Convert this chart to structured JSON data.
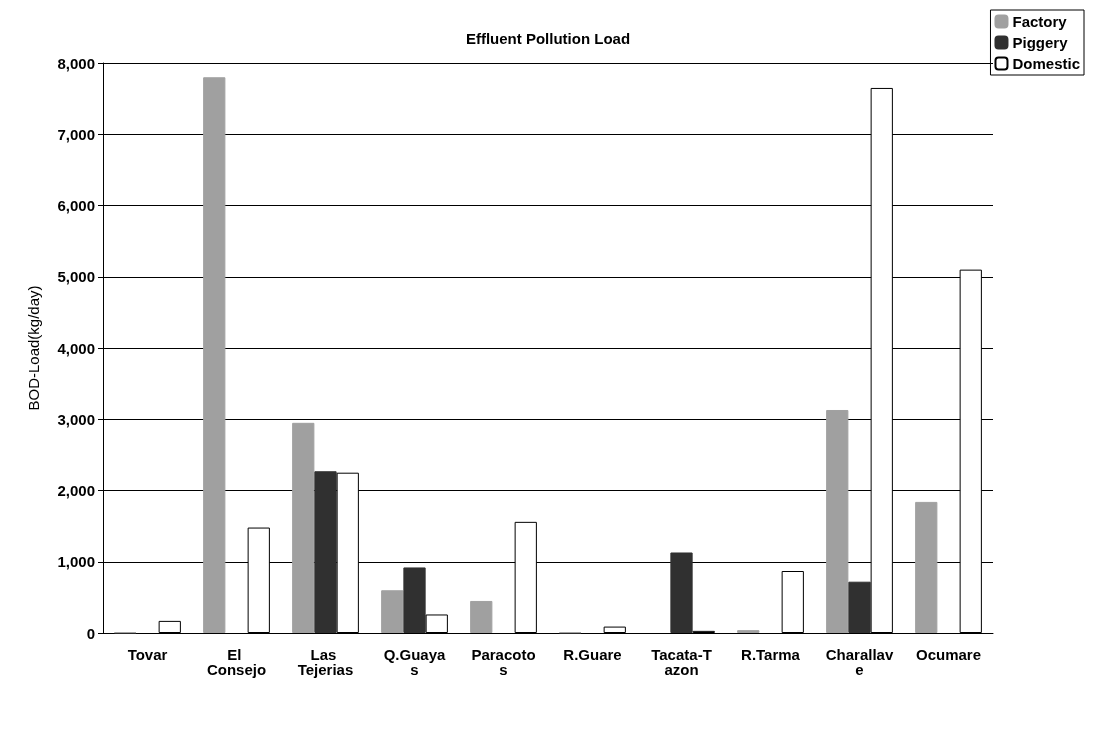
{
  "chart_data": {
    "type": "bar",
    "title": "Effluent Pollution Load",
    "ylabel": "BOD-Load(kg/day)",
    "categories": [
      "Tovar",
      "El Consejo",
      "Las Tejerias",
      "Q.Guayas",
      "Paracotos",
      "R.Guare",
      "Tacata-Tazon",
      "R.Tarma",
      "Charallave",
      "Ocumare"
    ],
    "series": [
      {
        "name": "Factory",
        "color": "#a0a0a0",
        "values": [
          10,
          7800,
          2950,
          600,
          450,
          10,
          0,
          40,
          3130,
          1840
        ]
      },
      {
        "name": "Piggery",
        "color": "#303030",
        "values": [
          0,
          0,
          2270,
          920,
          0,
          0,
          1130,
          0,
          720,
          0
        ]
      },
      {
        "name": "Domestic",
        "color": "#ffffff",
        "values": [
          170,
          1480,
          2250,
          260,
          1560,
          90,
          30,
          870,
          7650,
          5100
        ]
      }
    ],
    "ylim": [
      0,
      8000
    ],
    "yticks": [
      {
        "value": 0,
        "label": "0"
      },
      {
        "value": 1000,
        "label": "1,000"
      },
      {
        "value": 2000,
        "label": "2,000"
      },
      {
        "value": 3000,
        "label": "3,000"
      },
      {
        "value": 4000,
        "label": "4,000"
      },
      {
        "value": 5000,
        "label": "5,000"
      },
      {
        "value": 6000,
        "label": "6,000"
      },
      {
        "value": 7000,
        "label": "7,000"
      },
      {
        "value": 8000,
        "label": "8,000"
      }
    ],
    "grid": "y",
    "legend": "top right"
  }
}
